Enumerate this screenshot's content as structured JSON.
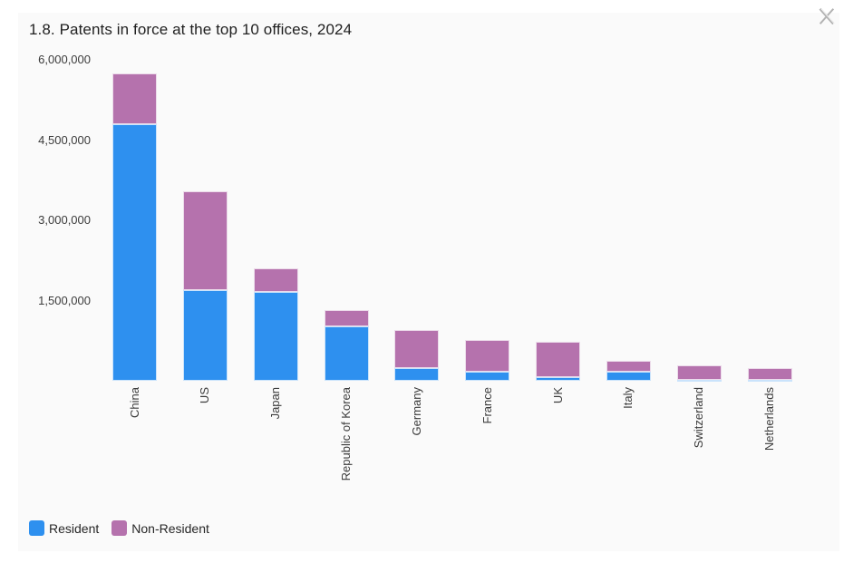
{
  "chart_data": {
    "type": "bar",
    "stacked": true,
    "title": "1.8. Patents in force at the top 10 offices, 2024",
    "categories": [
      "China",
      "US",
      "Japan",
      "Republic of Korea",
      "Germany",
      "France",
      "UK",
      "Italy",
      "Switzerland",
      "Netherlands"
    ],
    "series": [
      {
        "name": "Resident",
        "color": "#2E90EF",
        "values": [
          4800000,
          1700000,
          1660000,
          1010000,
          230000,
          170000,
          60000,
          170000,
          25000,
          20000
        ]
      },
      {
        "name": "Non-Resident",
        "color": "#B572AD",
        "values": [
          950000,
          1850000,
          440000,
          310000,
          720000,
          590000,
          670000,
          200000,
          260000,
          220000
        ]
      }
    ],
    "ylabel": "",
    "xlabel": "",
    "ylim": [
      0,
      6000000
    ],
    "yticks": [
      {
        "value": 1500000,
        "label": "1,500,000"
      },
      {
        "value": 3000000,
        "label": "3,000,000"
      },
      {
        "value": 4500000,
        "label": "4,500,000"
      },
      {
        "value": 6000000,
        "label": "6,000,000"
      }
    ],
    "grid": false,
    "legend_position": "bottom-left",
    "plot_background": "#FAFAFA"
  },
  "icons": {
    "close": "x-close-icon"
  }
}
